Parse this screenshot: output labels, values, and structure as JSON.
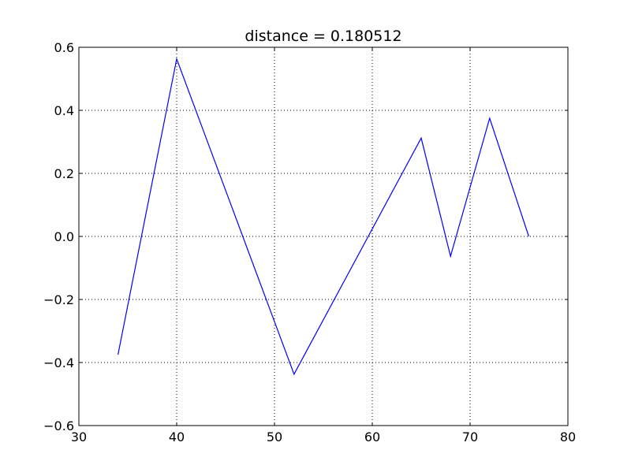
{
  "chart_data": {
    "type": "line",
    "title": "distance = 0.180512",
    "xlabel": "",
    "ylabel": "",
    "xlim": [
      30,
      80
    ],
    "ylim": [
      -0.6,
      0.6
    ],
    "grid": true,
    "x_ticks": [
      "30",
      "40",
      "50",
      "60",
      "70",
      "80"
    ],
    "y_ticks": [
      "0.6",
      "0.4",
      "0.2",
      "0.0",
      "−0.2",
      "−0.4",
      "−0.6"
    ],
    "series": [
      {
        "color": "#0000ff",
        "x": [
          34,
          40,
          52,
          65,
          68,
          72,
          76
        ],
        "y": [
          -0.375,
          0.563,
          -0.437,
          0.312,
          -0.063,
          0.375,
          0.0
        ]
      }
    ]
  }
}
